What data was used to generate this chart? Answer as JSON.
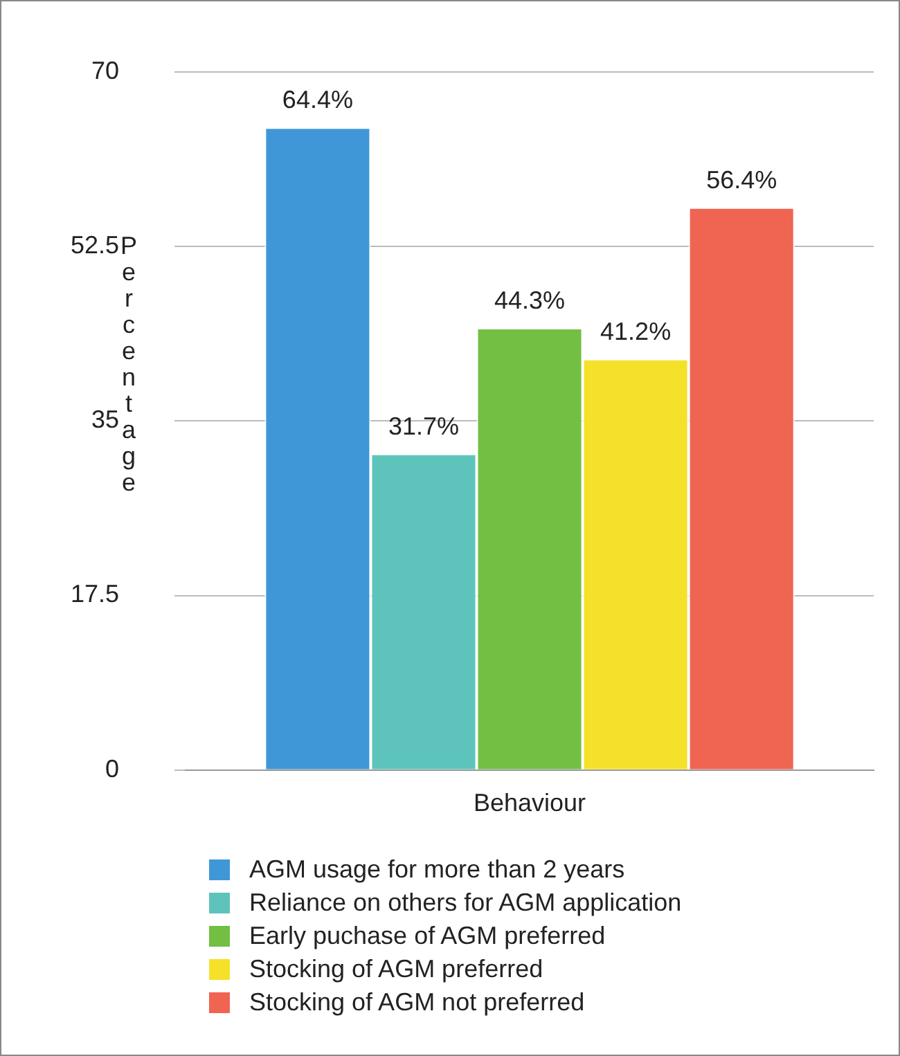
{
  "chart_data": {
    "type": "bar",
    "ylabel": "Percentage",
    "categories": [
      "Behaviour"
    ],
    "series": [
      {
        "name": "AGM usage for more than 2 years",
        "color": "#3f97d8",
        "values": [
          64.4
        ],
        "value_labels": [
          "64.4%"
        ]
      },
      {
        "name": "Reliance on others for AGM application",
        "color": "#5ec4bb",
        "values": [
          31.7
        ],
        "value_labels": [
          "31.7%"
        ]
      },
      {
        "name": "Early puchase of AGM preferred",
        "color": "#72bf44",
        "values": [
          44.3
        ],
        "value_labels": [
          "44.3%"
        ]
      },
      {
        "name": "Stocking of AGM preferred",
        "color": "#f5e12a",
        "values": [
          41.2
        ],
        "value_labels": [
          "41.2%"
        ]
      },
      {
        "name": "Stocking of AGM not preferred",
        "color": "#f06452",
        "values": [
          56.4
        ],
        "value_labels": [
          "56.4%"
        ]
      }
    ],
    "ylim": [
      0,
      70
    ],
    "yticks": [
      0,
      17.5,
      35,
      52.5,
      70
    ],
    "grid": "y",
    "legend": "bottom"
  }
}
